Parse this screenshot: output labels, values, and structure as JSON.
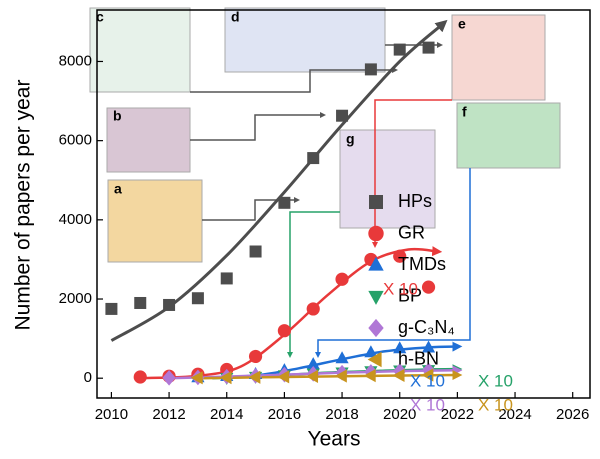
{
  "chart_data": {
    "type": "scatter",
    "xlabel": "Years",
    "ylabel": "Number of papers per year",
    "xlim": [
      2009.5,
      2026.6
    ],
    "ylim": [
      -500,
      9300
    ],
    "xticks": [
      2010,
      2012,
      2014,
      2016,
      2018,
      2020,
      2022,
      2024,
      2026
    ],
    "yticks": [
      0,
      2000,
      4000,
      6000,
      8000
    ],
    "series": [
      {
        "name": "HPs",
        "color": "#4d4d4d",
        "marker": "square",
        "x": [
          2010,
          2011,
          2012,
          2013,
          2014,
          2015,
          2016,
          2017,
          2018,
          2019,
          2020,
          2021
        ],
        "values": [
          1750,
          1900,
          1850,
          2020,
          2520,
          3200,
          4430,
          5560,
          6630,
          7800,
          8300,
          8350
        ],
        "fit": {
          "x": [
            2010,
            2012,
            2014,
            2016,
            2018,
            2020,
            2021.5
          ],
          "y": [
            950,
            1800,
            3100,
            4700,
            6400,
            8000,
            8950
          ]
        }
      },
      {
        "name": "GR",
        "color": "#e8393a",
        "marker": "circle",
        "x": [
          2011,
          2012,
          2013,
          2014,
          2015,
          2016,
          2017,
          2018,
          2019,
          2020,
          2021
        ],
        "values": [
          30,
          50,
          100,
          220,
          550,
          1200,
          1750,
          2500,
          3000,
          3080,
          2300
        ],
        "fit": {
          "x": [
            2011,
            2013,
            2014.5,
            2016,
            2017.5,
            2019,
            2020.3,
            2021.3
          ],
          "y": [
            0,
            60,
            300,
            1100,
            2100,
            2950,
            3250,
            3200
          ]
        }
      },
      {
        "name": "TMDs",
        "color": "#1f6fd6",
        "marker": "triangle-up",
        "x": [
          2013,
          2014,
          2015,
          2016,
          2017,
          2018,
          2019,
          2020,
          2021
        ],
        "values": [
          20,
          50,
          100,
          200,
          350,
          500,
          650,
          750,
          770
        ],
        "fit": {
          "x": [
            2013,
            2015,
            2016.5,
            2018,
            2019.5,
            2021,
            2022
          ],
          "y": [
            0,
            70,
            250,
            480,
            680,
            780,
            800
          ]
        }
      },
      {
        "name": "BP",
        "color": "#26a269",
        "marker": "triangle-down",
        "x": [
          2014,
          2015,
          2016,
          2017,
          2018,
          2019,
          2020,
          2021
        ],
        "values": [
          10,
          40,
          80,
          120,
          150,
          180,
          200,
          210
        ],
        "fit": {
          "x": [
            2013.5,
            2015.5,
            2017.5,
            2019.5,
            2021,
            2022
          ],
          "y": [
            0,
            60,
            140,
            190,
            220,
            230
          ]
        }
      },
      {
        "name": "g-C₃N₄",
        "color": "#b077d6",
        "marker": "diamond",
        "x": [
          2012,
          2013,
          2014,
          2015,
          2016,
          2017,
          2018,
          2019,
          2020,
          2021
        ],
        "values": [
          10,
          20,
          40,
          60,
          90,
          110,
          140,
          160,
          180,
          200
        ],
        "fit": {
          "x": [
            2012,
            2014,
            2016,
            2018,
            2020,
            2022
          ],
          "y": [
            0,
            40,
            90,
            140,
            180,
            200
          ]
        }
      },
      {
        "name": "h-BN",
        "color": "#c8941e",
        "marker": "triangle-left",
        "x": [
          2013,
          2014,
          2015,
          2016,
          2017,
          2018,
          2019,
          2020,
          2021
        ],
        "values": [
          10,
          15,
          25,
          35,
          45,
          55,
          65,
          70,
          80
        ],
        "fit": {
          "x": [
            2013,
            2015,
            2017,
            2019,
            2021,
            2022
          ],
          "y": [
            0,
            20,
            40,
            60,
            75,
            80
          ]
        }
      }
    ],
    "annotations": [
      {
        "text": "X 10",
        "color": "#e8393a"
      },
      {
        "text": "X 10",
        "color": "#1f6fd6"
      },
      {
        "text": "X 10",
        "color": "#26a269"
      },
      {
        "text": "X 10",
        "color": "#b077d6"
      },
      {
        "text": "X 10",
        "color": "#c8941e"
      }
    ],
    "insets": [
      "a",
      "b",
      "c",
      "d",
      "e",
      "f",
      "g"
    ]
  }
}
